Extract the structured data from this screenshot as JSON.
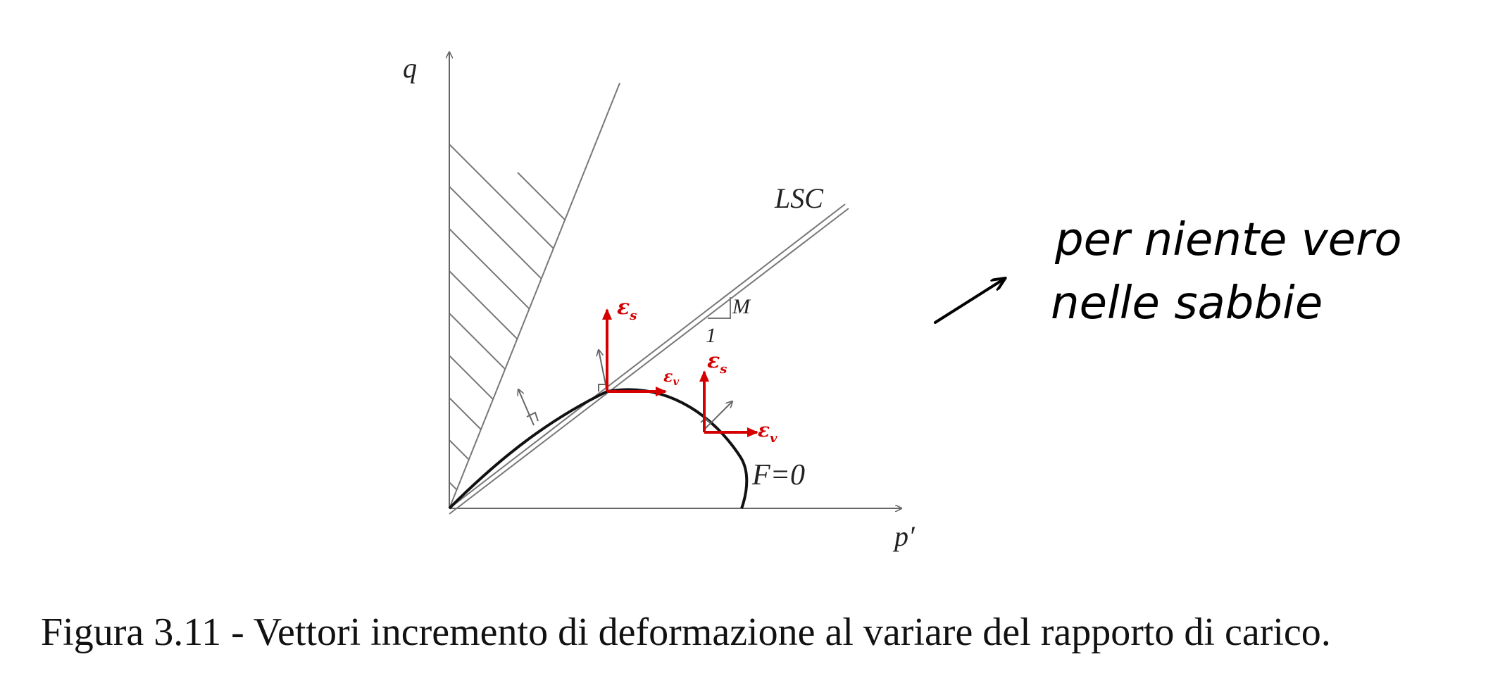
{
  "diagram": {
    "axis_q": "q",
    "axis_p": "p′",
    "csl_label": "LSC",
    "slope_rise": "M",
    "slope_run": "1",
    "yield_label": "F=0",
    "eps_s": "ε",
    "eps_s_sub": "s",
    "eps_v": "ε",
    "eps_v_sub": "v",
    "handwritten_line1": "per niente vero",
    "handwritten_line2": "nelle sabbie",
    "colors": {
      "annotation_red": "#d40000",
      "line_gray": "#777777"
    }
  },
  "caption": "Figura 3.11 - Vettori incremento di deformazione al variare del rapporto di carico."
}
